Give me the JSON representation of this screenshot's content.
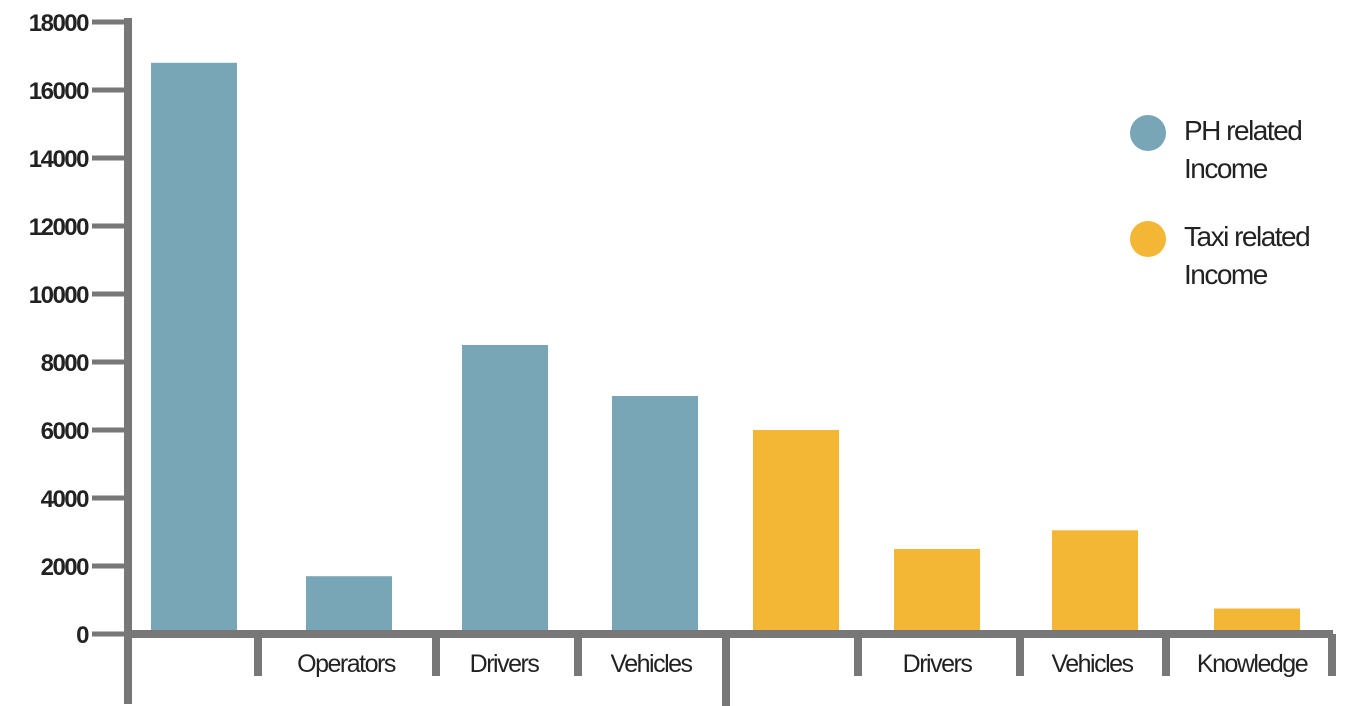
{
  "chart_data": {
    "type": "bar",
    "title": "",
    "xlabel": "",
    "ylabel": "",
    "ylim": [
      0,
      18000
    ],
    "yticks": [
      "0",
      "2000",
      "4000",
      "6000",
      "8000",
      "10000",
      "12000",
      "14000",
      "16000",
      "18000"
    ],
    "categories": [
      "",
      "Operators",
      "Drivers",
      "Vehicles",
      "",
      "Drivers",
      "Vehicles",
      "Knowledge"
    ],
    "values": [
      16800,
      1700,
      8500,
      7000,
      6000,
      2500,
      3050,
      750
    ],
    "groups": [
      "PH related Income",
      "PH related Income",
      "PH related Income",
      "PH related Income",
      "Taxi related Income",
      "Taxi related Income",
      "Taxi related Income",
      "Taxi related Income"
    ],
    "legend": [
      {
        "name": "PH related Income",
        "color": "#78a6b6"
      },
      {
        "name": "Taxi related Income",
        "color": "#f3b735"
      }
    ],
    "legend_position": "top-right",
    "grid": false,
    "axis_color": "#777777"
  }
}
